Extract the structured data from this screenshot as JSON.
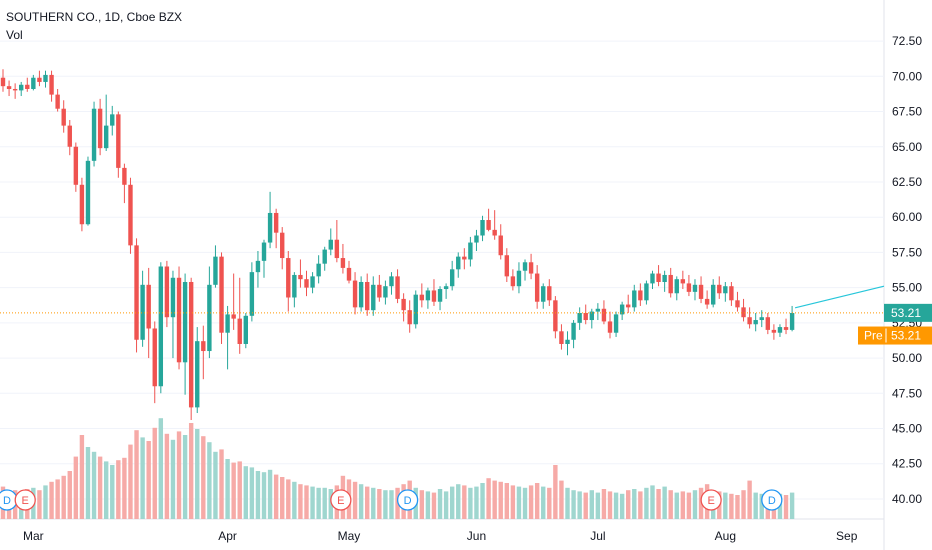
{
  "header": {
    "title": "SOUTHERN CO., 1D, Cboe BZX",
    "volume_label": "Vol"
  },
  "price_tag": {
    "value": "53.21",
    "color": "#26a69a"
  },
  "pre_tag": {
    "label": "Pre",
    "value": "53.21",
    "color": "#ff9800"
  },
  "colors": {
    "up": "#26a69a",
    "down": "#ef5350",
    "vol_up": "#9fd6cf",
    "vol_down": "#f6aaa7",
    "grid": "#f0f3fa",
    "last_line": "#ff9800"
  },
  "chart_data": {
    "type": "candlestick",
    "title": "SOUTHERN CO., 1D, Cboe BZX",
    "y_ticks": [
      "72.50",
      "70.00",
      "67.50",
      "65.00",
      "62.50",
      "60.00",
      "57.50",
      "55.00",
      "52.50",
      "50.00",
      "47.50",
      "45.00",
      "42.50",
      "40.00"
    ],
    "ylim": [
      39.5,
      73.5
    ],
    "x_labels": [
      "Mar",
      "Apr",
      "May",
      "Jun",
      "Jul",
      "Aug",
      "Sep"
    ],
    "x_label_index": [
      5,
      37,
      57,
      78,
      98,
      119,
      139
    ],
    "events": [
      {
        "type": "D",
        "index": 0
      },
      {
        "type": "E",
        "index": 3
      },
      {
        "type": "E",
        "index": 55
      },
      {
        "type": "D",
        "index": 66
      },
      {
        "type": "E",
        "index": 116
      },
      {
        "type": "D",
        "index": 126
      }
    ],
    "last_price": 53.21,
    "candles": [
      [
        69.9,
        70.5,
        68.9,
        69.3,
        2.7
      ],
      [
        69.3,
        69.7,
        68.6,
        69.1,
        2.3
      ],
      [
        69.1,
        69.5,
        68.4,
        69.0,
        2.4
      ],
      [
        69.0,
        69.6,
        68.6,
        69.4,
        2.2
      ],
      [
        69.4,
        69.9,
        68.9,
        69.1,
        2.5
      ],
      [
        69.1,
        70.1,
        69.0,
        69.9,
        2.6
      ],
      [
        69.9,
        70.4,
        69.3,
        69.6,
        2.4
      ],
      [
        69.6,
        70.4,
        69.2,
        70.1,
        2.8
      ],
      [
        70.1,
        70.4,
        68.2,
        68.7,
        3.1
      ],
      [
        68.7,
        69.1,
        67.5,
        67.7,
        3.3
      ],
      [
        67.7,
        68.3,
        66.0,
        66.5,
        3.6
      ],
      [
        66.5,
        66.9,
        64.4,
        65.0,
        4.0
      ],
      [
        65.0,
        65.3,
        61.8,
        62.3,
        5.2
      ],
      [
        62.3,
        62.8,
        59.0,
        59.5,
        7.0
      ],
      [
        59.5,
        64.3,
        59.4,
        64.0,
        6.0
      ],
      [
        64.0,
        68.2,
        63.6,
        67.7,
        5.6
      ],
      [
        67.7,
        68.4,
        64.4,
        64.9,
        5.2
      ],
      [
        64.9,
        68.7,
        64.7,
        66.5,
        4.8
      ],
      [
        66.5,
        67.9,
        65.8,
        67.3,
        4.5
      ],
      [
        67.3,
        67.5,
        62.8,
        63.5,
        4.9
      ],
      [
        63.5,
        63.8,
        61.0,
        62.3,
        5.1
      ],
      [
        62.3,
        62.8,
        57.4,
        58.0,
        6.2
      ],
      [
        58.0,
        58.5,
        50.4,
        51.3,
        7.4
      ],
      [
        51.3,
        56.2,
        50.8,
        55.2,
        6.8
      ],
      [
        55.2,
        56.4,
        50.0,
        52.1,
        6.5
      ],
      [
        52.1,
        52.6,
        46.8,
        48.0,
        7.6
      ],
      [
        48.0,
        56.8,
        47.5,
        56.5,
        8.4
      ],
      [
        56.5,
        56.9,
        52.2,
        52.9,
        7.1
      ],
      [
        52.9,
        56.2,
        50.0,
        55.7,
        6.6
      ],
      [
        55.7,
        56.5,
        49.2,
        49.7,
        7.3
      ],
      [
        49.7,
        56.0,
        47.4,
        55.4,
        7.0
      ],
      [
        55.4,
        55.7,
        45.6,
        46.5,
        8.0
      ],
      [
        46.5,
        52.2,
        46.1,
        51.2,
        7.5
      ],
      [
        51.2,
        52.3,
        48.5,
        50.5,
        6.9
      ],
      [
        50.5,
        56.5,
        50.0,
        55.2,
        6.4
      ],
      [
        55.2,
        58.0,
        55.0,
        57.2,
        5.6
      ],
      [
        57.2,
        57.5,
        51.0,
        51.8,
        5.8
      ],
      [
        51.8,
        53.7,
        49.2,
        53.1,
        5.0
      ],
      [
        53.1,
        56.0,
        52.0,
        52.8,
        4.7
      ],
      [
        52.8,
        55.7,
        50.3,
        51.0,
        4.8
      ],
      [
        51.0,
        53.2,
        50.7,
        53.0,
        4.4
      ],
      [
        53.0,
        56.8,
        52.6,
        56.1,
        4.3
      ],
      [
        56.1,
        57.6,
        55.0,
        56.9,
        4.0
      ],
      [
        56.9,
        58.4,
        55.7,
        58.2,
        3.9
      ],
      [
        58.2,
        61.8,
        57.8,
        60.3,
        4.1
      ],
      [
        60.3,
        60.6,
        57.8,
        58.9,
        3.7
      ],
      [
        58.9,
        59.3,
        56.3,
        57.1,
        3.5
      ],
      [
        57.1,
        57.6,
        53.3,
        54.3,
        3.3
      ],
      [
        54.3,
        56.1,
        53.6,
        55.9,
        3.1
      ],
      [
        55.9,
        57.0,
        55.0,
        55.6,
        2.9
      ],
      [
        55.6,
        56.2,
        54.4,
        55.0,
        2.8
      ],
      [
        55.0,
        56.1,
        54.6,
        55.8,
        2.7
      ],
      [
        55.8,
        57.3,
        55.3,
        56.7,
        2.6
      ],
      [
        56.7,
        57.9,
        56.2,
        57.7,
        2.6
      ],
      [
        57.7,
        59.2,
        57.3,
        58.4,
        2.5
      ],
      [
        58.4,
        59.8,
        56.8,
        57.1,
        2.8
      ],
      [
        57.1,
        58.1,
        56.0,
        56.4,
        3.6
      ],
      [
        56.4,
        56.9,
        55.3,
        55.5,
        3.3
      ],
      [
        55.5,
        56.1,
        53.1,
        53.6,
        3.1
      ],
      [
        53.6,
        55.8,
        53.3,
        55.4,
        2.9
      ],
      [
        55.4,
        56.0,
        53.0,
        53.4,
        2.7
      ],
      [
        53.4,
        55.8,
        53.0,
        55.2,
        2.6
      ],
      [
        55.2,
        55.9,
        54.0,
        54.3,
        2.5
      ],
      [
        54.3,
        55.5,
        53.8,
        55.1,
        2.4
      ],
      [
        55.1,
        56.1,
        54.5,
        55.8,
        2.4
      ],
      [
        55.8,
        56.3,
        53.9,
        54.2,
        2.6
      ],
      [
        54.2,
        54.6,
        52.6,
        53.4,
        2.9
      ],
      [
        53.4,
        54.1,
        51.8,
        52.4,
        3.2
      ],
      [
        52.4,
        54.8,
        52.1,
        54.5,
        2.6
      ],
      [
        54.5,
        55.3,
        53.6,
        54.1,
        2.4
      ],
      [
        54.1,
        55.0,
        53.5,
        54.8,
        2.3
      ],
      [
        54.8,
        55.6,
        53.7,
        54.0,
        2.2
      ],
      [
        54.0,
        55.1,
        53.4,
        54.9,
        2.5
      ],
      [
        54.9,
        55.3,
        54.2,
        55.1,
        2.3
      ],
      [
        55.1,
        56.9,
        54.8,
        56.3,
        2.7
      ],
      [
        56.3,
        57.5,
        55.7,
        57.2,
        2.9
      ],
      [
        57.2,
        57.8,
        56.3,
        57.0,
        2.8
      ],
      [
        57.0,
        58.6,
        56.5,
        58.2,
        2.6
      ],
      [
        58.2,
        59.1,
        57.6,
        58.7,
        2.7
      ],
      [
        58.7,
        60.1,
        58.3,
        59.8,
        3.0
      ],
      [
        59.8,
        60.6,
        59.0,
        59.1,
        3.4
      ],
      [
        59.1,
        60.5,
        58.4,
        58.7,
        3.2
      ],
      [
        58.7,
        59.5,
        57.0,
        57.3,
        3.1
      ],
      [
        57.3,
        57.8,
        55.4,
        55.8,
        3.0
      ],
      [
        55.8,
        56.3,
        54.8,
        55.1,
        2.8
      ],
      [
        55.1,
        56.8,
        54.6,
        56.2,
        2.7
      ],
      [
        56.2,
        57.0,
        55.5,
        56.8,
        2.6
      ],
      [
        56.8,
        57.4,
        55.6,
        56.0,
        2.8
      ],
      [
        56.0,
        56.6,
        53.5,
        54.0,
        3.0
      ],
      [
        54.0,
        55.3,
        53.5,
        55.1,
        2.7
      ],
      [
        55.1,
        55.6,
        53.7,
        54.1,
        2.6
      ],
      [
        54.1,
        54.4,
        51.4,
        51.9,
        4.5
      ],
      [
        51.9,
        52.4,
        50.6,
        51.0,
        3.2
      ],
      [
        51.0,
        51.9,
        50.2,
        51.3,
        2.6
      ],
      [
        51.3,
        52.7,
        50.7,
        52.5,
        2.4
      ],
      [
        52.5,
        53.6,
        52.0,
        53.2,
        2.3
      ],
      [
        53.2,
        53.8,
        52.4,
        52.7,
        2.2
      ],
      [
        52.7,
        53.5,
        52.1,
        53.3,
        2.4
      ],
      [
        53.3,
        53.9,
        52.7,
        53.5,
        2.2
      ],
      [
        53.5,
        54.1,
        52.4,
        52.6,
        2.5
      ],
      [
        52.6,
        53.3,
        51.4,
        51.8,
        2.3
      ],
      [
        51.8,
        53.3,
        51.5,
        53.1,
        2.2
      ],
      [
        53.1,
        54.0,
        52.7,
        53.8,
        2.1
      ],
      [
        53.8,
        54.5,
        53.2,
        53.6,
        2.4
      ],
      [
        53.6,
        55.2,
        53.3,
        54.8,
        2.5
      ],
      [
        54.8,
        55.3,
        53.7,
        54.1,
        2.3
      ],
      [
        54.1,
        55.5,
        53.8,
        55.3,
        2.6
      ],
      [
        55.3,
        56.2,
        54.9,
        56.0,
        2.8
      ],
      [
        56.0,
        56.6,
        55.1,
        55.4,
        2.5
      ],
      [
        55.4,
        56.2,
        54.7,
        55.9,
        2.7
      ],
      [
        55.9,
        56.4,
        54.3,
        54.6,
        2.4
      ],
      [
        54.6,
        55.8,
        54.1,
        55.6,
        2.2
      ],
      [
        55.6,
        56.2,
        54.9,
        55.3,
        2.3
      ],
      [
        55.3,
        55.9,
        54.4,
        54.7,
        2.2
      ],
      [
        54.7,
        55.6,
        54.1,
        55.2,
        2.4
      ],
      [
        55.2,
        55.8,
        53.9,
        54.2,
        2.6
      ],
      [
        54.2,
        54.8,
        53.5,
        53.8,
        2.9
      ],
      [
        53.8,
        55.6,
        53.6,
        55.2,
        2.4
      ],
      [
        55.2,
        55.8,
        54.2,
        54.6,
        2.3
      ],
      [
        54.6,
        55.4,
        54.0,
        55.1,
        2.2
      ],
      [
        55.1,
        55.4,
        53.7,
        54.1,
        2.1
      ],
      [
        54.1,
        54.7,
        53.3,
        53.6,
        2.0
      ],
      [
        53.6,
        54.2,
        52.6,
        52.9,
        2.4
      ],
      [
        52.9,
        53.6,
        52.1,
        52.4,
        3.2
      ],
      [
        52.4,
        53.2,
        51.9,
        52.7,
        2.2
      ],
      [
        52.7,
        53.4,
        52.2,
        52.9,
        2.1
      ],
      [
        52.9,
        53.2,
        51.7,
        52.0,
        2.3
      ],
      [
        52.0,
        52.4,
        51.3,
        51.8,
        2.0
      ],
      [
        51.8,
        52.4,
        51.5,
        52.2,
        2.1
      ],
      [
        52.2,
        52.8,
        51.7,
        52.0,
        2.0
      ],
      [
        52.0,
        53.7,
        51.9,
        53.2,
        2.2
      ]
    ]
  }
}
